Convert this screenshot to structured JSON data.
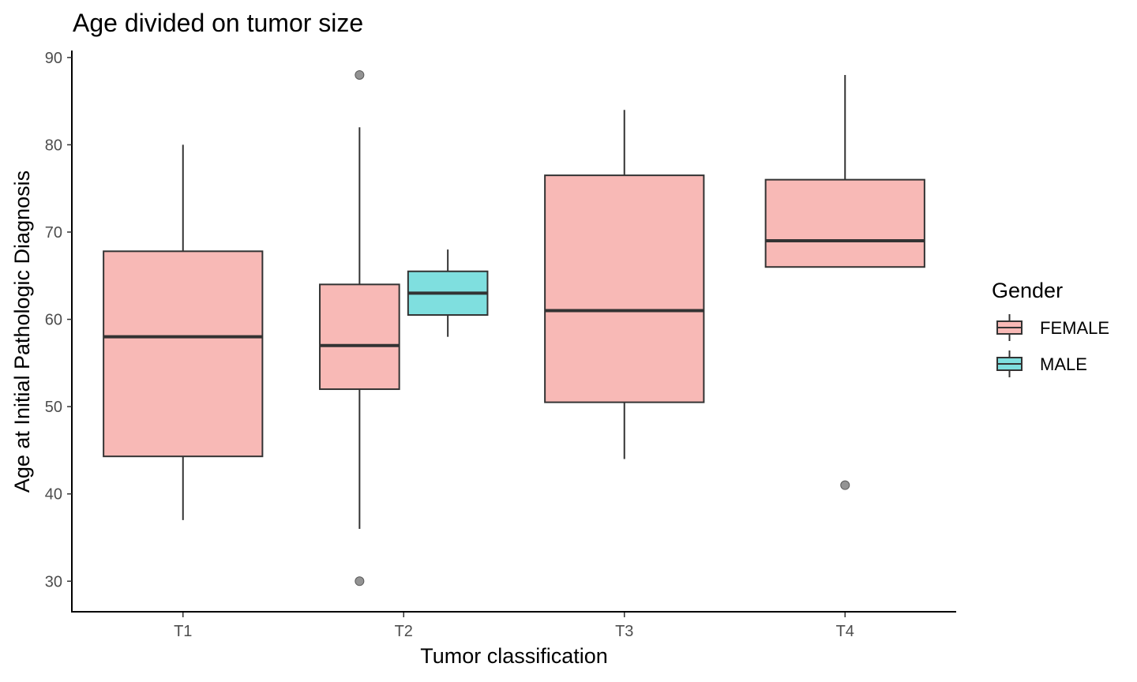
{
  "chart_data": {
    "type": "boxplot",
    "title": "Age divided on tumor size",
    "xlabel": "Tumor classification",
    "ylabel": "Age at Initial Pathologic Diagnosis",
    "categories": [
      "T1",
      "T2",
      "T3",
      "T4"
    ],
    "yticks": [
      30,
      40,
      50,
      60,
      70,
      80,
      90
    ],
    "ylim": [
      26.5,
      90.8
    ],
    "grid": false,
    "legend": {
      "title": "Gender",
      "position": "right",
      "entries": [
        {
          "label": "FEMALE",
          "color": "#f8b9b6"
        },
        {
          "label": "MALE",
          "color": "#7fdfdf"
        }
      ]
    },
    "colors": {
      "FEMALE": "#f8b9b6",
      "MALE": "#7fdfdf",
      "outline": "#333333",
      "outlier": "#808080"
    },
    "boxes": [
      {
        "category": "T1",
        "group": "FEMALE",
        "whisker_low": 37,
        "q1": 44.3,
        "median": 58,
        "q3": 67.8,
        "whisker_high": 80,
        "outliers": []
      },
      {
        "category": "T2",
        "group": "FEMALE",
        "whisker_low": 36,
        "q1": 52,
        "median": 57,
        "q3": 64,
        "whisker_high": 82,
        "outliers": [
          88,
          30
        ]
      },
      {
        "category": "T2",
        "group": "MALE",
        "whisker_low": 58,
        "q1": 60.5,
        "median": 63,
        "q3": 65.5,
        "whisker_high": 68,
        "outliers": []
      },
      {
        "category": "T3",
        "group": "FEMALE",
        "whisker_low": 44,
        "q1": 50.5,
        "median": 61,
        "q3": 76.5,
        "whisker_high": 84,
        "outliers": []
      },
      {
        "category": "T4",
        "group": "FEMALE",
        "whisker_low": 66,
        "q1": 66,
        "median": 69,
        "q3": 76,
        "whisker_high": 88,
        "outliers": [
          41
        ]
      }
    ]
  }
}
